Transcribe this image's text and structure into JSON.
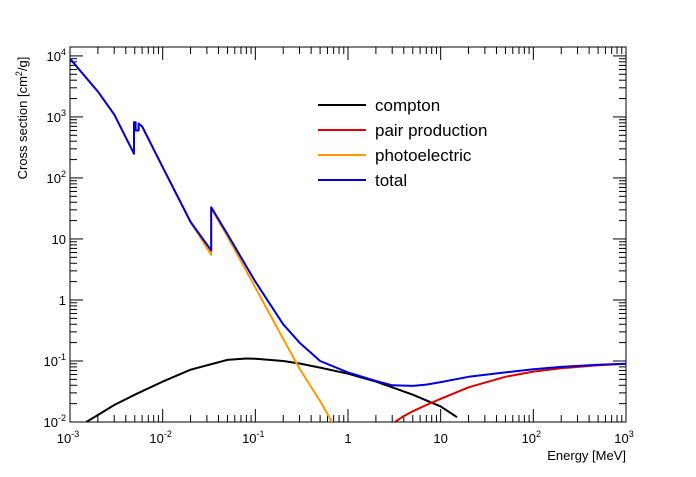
{
  "chart_data": {
    "type": "line",
    "title": "",
    "xlabel": "Energy [MeV]",
    "ylabel": "Cross section [cm²/g]",
    "ylabel_base": "Cross section [cm",
    "ylabel_sup": "2",
    "ylabel_tail": "/g]",
    "xscale": "log",
    "yscale": "log",
    "xlim": [
      0.001,
      1000
    ],
    "ylim": [
      0.01,
      14000
    ],
    "grid": false,
    "legend_position": "upper-center",
    "x_ticks": [
      {
        "value": 0.001,
        "base": "10",
        "exp": "-3"
      },
      {
        "value": 0.01,
        "base": "10",
        "exp": "-2"
      },
      {
        "value": 0.1,
        "base": "10",
        "exp": "-1"
      },
      {
        "value": 1,
        "base": "1",
        "exp": ""
      },
      {
        "value": 10,
        "base": "10",
        "exp": ""
      },
      {
        "value": 100,
        "base": "10",
        "exp": "2"
      },
      {
        "value": 1000,
        "base": "10",
        "exp": "3"
      }
    ],
    "y_ticks": [
      {
        "value": 0.01,
        "base": "10",
        "exp": "-2"
      },
      {
        "value": 0.1,
        "base": "10",
        "exp": "-1"
      },
      {
        "value": 1,
        "base": "1",
        "exp": ""
      },
      {
        "value": 10,
        "base": "10",
        "exp": ""
      },
      {
        "value": 100,
        "base": "10",
        "exp": "2"
      },
      {
        "value": 1000,
        "base": "10",
        "exp": "3"
      },
      {
        "value": 10000,
        "base": "10",
        "exp": "4"
      }
    ],
    "series": [
      {
        "name": "compton",
        "color": "#000000",
        "x": [
          0.0015,
          0.002,
          0.003,
          0.005,
          0.01,
          0.02,
          0.05,
          0.08,
          0.1,
          0.2,
          0.3,
          0.5,
          1,
          2,
          3,
          5,
          10,
          15
        ],
        "y": [
          0.01,
          0.013,
          0.019,
          0.028,
          0.046,
          0.072,
          0.104,
          0.11,
          0.109,
          0.1,
          0.091,
          0.078,
          0.062,
          0.046,
          0.037,
          0.028,
          0.018,
          0.012
        ]
      },
      {
        "name": "pair production",
        "color": "#dd0000",
        "x": [
          3.2,
          4,
          5,
          7,
          10,
          20,
          50,
          100,
          200,
          500,
          1000
        ],
        "y": [
          0.01,
          0.0125,
          0.015,
          0.019,
          0.024,
          0.037,
          0.055,
          0.067,
          0.076,
          0.085,
          0.09
        ]
      },
      {
        "name": "photoelectric",
        "color": "#ff9900",
        "x": [
          0.001,
          0.002,
          0.003,
          0.0049,
          0.0049,
          0.0051,
          0.0051,
          0.0055,
          0.0055,
          0.006,
          0.01,
          0.02,
          0.0334,
          0.0334,
          0.05,
          0.1,
          0.2,
          0.3,
          0.5,
          0.7
        ],
        "y": [
          9000,
          2600,
          1100,
          250,
          820,
          820,
          600,
          600,
          780,
          700,
          150,
          19,
          5.5,
          32,
          11,
          1.6,
          0.23,
          0.075,
          0.022,
          0.009
        ]
      },
      {
        "name": "total",
        "color": "#0000dd",
        "x": [
          0.001,
          0.002,
          0.003,
          0.0049,
          0.0049,
          0.0051,
          0.0051,
          0.0055,
          0.0055,
          0.006,
          0.01,
          0.02,
          0.0334,
          0.0334,
          0.05,
          0.1,
          0.2,
          0.3,
          0.5,
          1,
          2,
          3,
          5,
          7,
          10,
          20,
          50,
          100,
          200,
          500,
          1000
        ],
        "y": [
          9000,
          2600,
          1100,
          250,
          820,
          820,
          600,
          600,
          780,
          700,
          150,
          19,
          6.5,
          33,
          12,
          2.0,
          0.4,
          0.2,
          0.1,
          0.065,
          0.047,
          0.04,
          0.039,
          0.041,
          0.045,
          0.055,
          0.065,
          0.073,
          0.08,
          0.087,
          0.09
        ]
      }
    ]
  }
}
